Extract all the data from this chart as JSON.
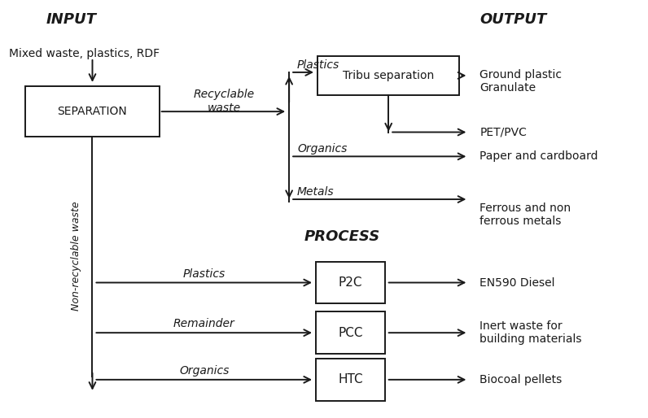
{
  "title_input": "INPUT",
  "title_output": "OUTPUT",
  "title_process": "PROCESS",
  "input_label": "Mixed waste, plastics, RDF",
  "non_recyclable_label": "Non-recyclable waste",
  "recyclable_waste_label": "Recyclable\nwaste",
  "sep_box_label": "SEPARATION",
  "tribu_box_label": "Tribu separation",
  "p2c_label": "P2C",
  "pcc_label": "PCC",
  "htc_label": "HTC",
  "bg_color": "#ffffff",
  "line_color": "#1a1a1a",
  "text_color": "#1a1a1a"
}
